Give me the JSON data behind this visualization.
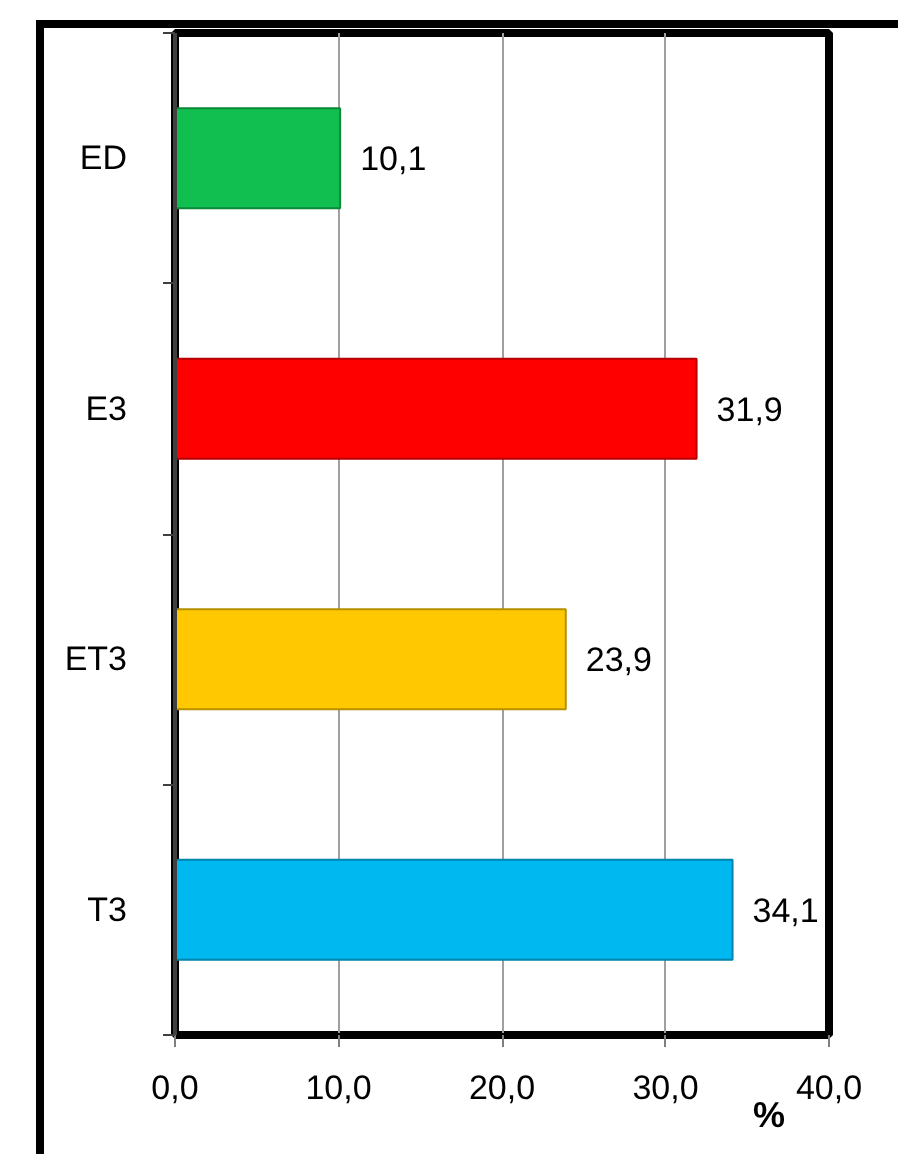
{
  "chart_data": {
    "type": "bar",
    "orientation": "horizontal",
    "categories": [
      "ED",
      "E3",
      "ET3",
      "T3"
    ],
    "values": [
      10.1,
      31.9,
      23.9,
      34.1
    ],
    "colors": [
      "#10bf50",
      "#ff0000",
      "#ffc800",
      "#00b8f0"
    ],
    "value_labels": [
      "10,1",
      "31,9",
      "23,9",
      "34,1"
    ],
    "xlabel": "%",
    "xlim": [
      0,
      40
    ],
    "xticks": [
      {
        "value": 0,
        "label": "0,0"
      },
      {
        "value": 10,
        "label": "10,0"
      },
      {
        "value": 20,
        "label": "20,0"
      },
      {
        "value": 30,
        "label": "30,0"
      },
      {
        "value": 40,
        "label": "40,0"
      }
    ],
    "grid": "x"
  }
}
